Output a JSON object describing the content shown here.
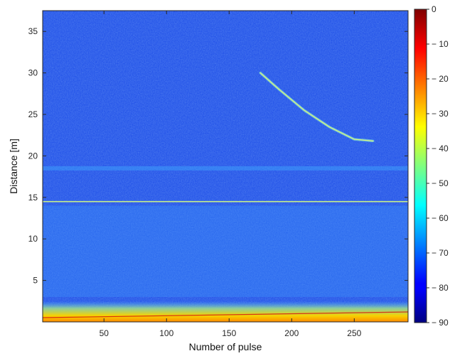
{
  "chart_data": {
    "type": "heatmap",
    "title": "",
    "xlabel": "Number of pulse",
    "ylabel": "Distance [m]",
    "xlim": [
      1,
      293
    ],
    "ylim": [
      0,
      37.5
    ],
    "x_ticks": [
      50,
      100,
      150,
      200,
      250
    ],
    "y_ticks": [
      5,
      10,
      15,
      20,
      25,
      30,
      35
    ],
    "colorbar": {
      "colormap": "jet",
      "range": [
        -90,
        0
      ],
      "ticks": [
        0,
        -10,
        -20,
        -30,
        -40,
        -50,
        -60,
        -70,
        -80,
        -90
      ]
    },
    "background_level": -72,
    "features": [
      {
        "label": "horizontal reflection line",
        "distance": 14.5,
        "level": -45
      },
      {
        "label": "horizontal band",
        "distance": 18.5,
        "level": -62
      },
      {
        "label": "near-range band",
        "distance_range": [
          0,
          2.5
        ],
        "level": -28
      },
      {
        "label": "moving target trace",
        "points": [
          [
            175,
            30
          ],
          [
            190,
            28
          ],
          [
            210,
            25.5
          ],
          [
            230,
            23.5
          ],
          [
            250,
            22
          ],
          [
            265,
            21.8
          ]
        ],
        "level": -45
      }
    ]
  }
}
